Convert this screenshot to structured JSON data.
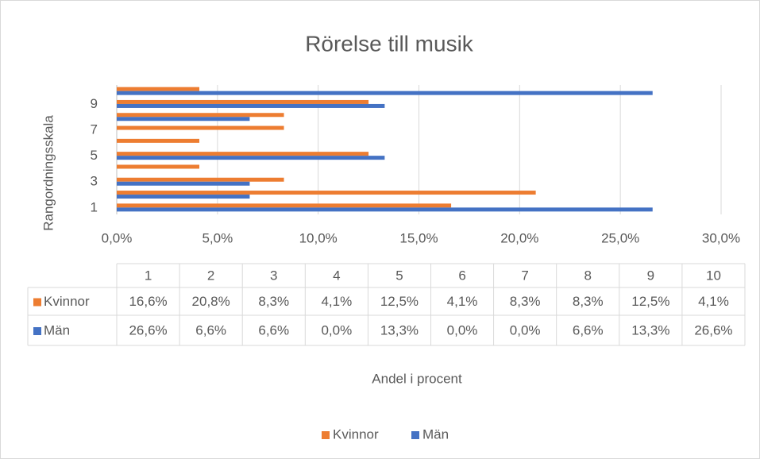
{
  "chart_data": {
    "type": "bar",
    "orientation": "horizontal",
    "title": "Rörelse till musik",
    "x_label": "Andel i procent",
    "y_label": "Rangordningsskala",
    "categories": [
      "1",
      "2",
      "3",
      "4",
      "5",
      "6",
      "7",
      "8",
      "9",
      "10"
    ],
    "series": [
      {
        "name": "Kvinnor",
        "color": "#ed7d31",
        "values": [
          16.6,
          20.8,
          8.3,
          4.1,
          12.5,
          4.1,
          8.3,
          8.3,
          12.5,
          4.1
        ],
        "value_labels": [
          "16,6%",
          "20,8%",
          "8,3%",
          "4,1%",
          "12,5%",
          "4,1%",
          "8,3%",
          "8,3%",
          "12,5%",
          "4,1%"
        ]
      },
      {
        "name": "Män",
        "color": "#4472c4",
        "values": [
          26.6,
          6.6,
          6.6,
          0.0,
          13.3,
          0.0,
          0.0,
          6.6,
          13.3,
          26.6
        ],
        "value_labels": [
          "26,6%",
          "6,6%",
          "6,6%",
          "0,0%",
          "13,3%",
          "0,0%",
          "0,0%",
          "6,6%",
          "13,3%",
          "26,6%"
        ]
      }
    ],
    "xlim": [
      0,
      30
    ],
    "xticks": [
      {
        "value": 0,
        "label": "0,0%"
      },
      {
        "value": 5,
        "label": "5,0%"
      },
      {
        "value": 10,
        "label": "10,0%"
      },
      {
        "value": 15,
        "label": "15,0%"
      },
      {
        "value": 20,
        "label": "20,0%"
      },
      {
        "value": 25,
        "label": "25,0%"
      },
      {
        "value": 30,
        "label": "30,0%"
      }
    ],
    "grid": true,
    "data_table": true,
    "legend": "bottom"
  }
}
